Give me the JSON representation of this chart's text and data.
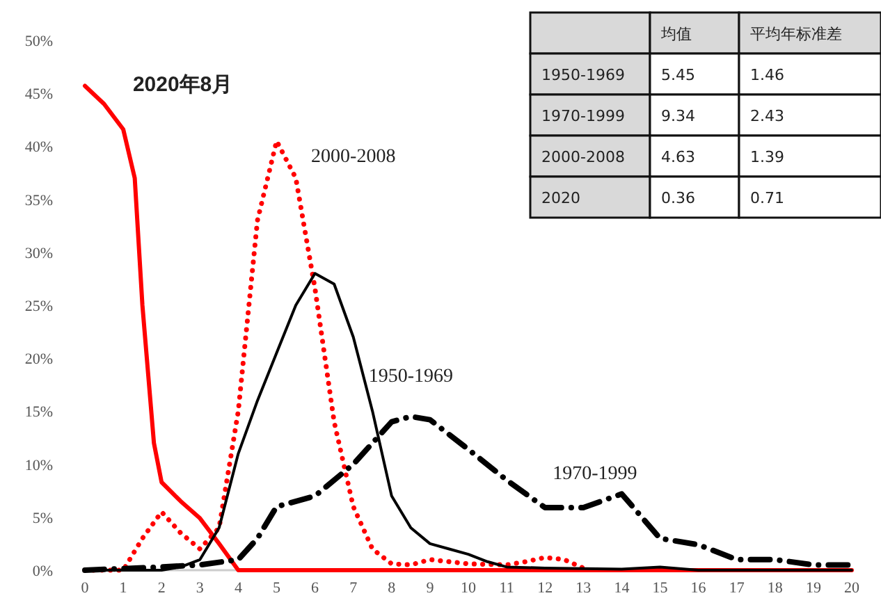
{
  "chart_data": {
    "type": "line",
    "annotations": [
      "均值",
      "平均年标准差",
      "1950-1969",
      "5.45",
      "1.46",
      "1970-1999",
      "9.34",
      "2.43",
      "2000-2008",
      "4.63",
      "1.39",
      "2020",
      "0.36",
      "0.71"
    ],
    "xlim": [
      0,
      20
    ],
    "xticks": [
      0,
      1,
      2,
      3,
      4,
      5,
      6,
      7,
      8,
      9,
      10,
      11,
      12,
      13,
      14,
      15,
      16,
      17,
      18,
      19,
      20
    ],
    "ylim": [
      0,
      50
    ],
    "yticks": [
      {
        "value": 0,
        "label": "0%"
      },
      {
        "value": 5,
        "label": "5%"
      },
      {
        "value": 10,
        "label": "10%"
      },
      {
        "value": 15,
        "label": "15%"
      },
      {
        "value": 20,
        "label": "20%"
      },
      {
        "value": 25,
        "label": "25%"
      },
      {
        "value": 30,
        "label": "30%"
      },
      {
        "value": 35,
        "label": "35%"
      },
      {
        "value": 40,
        "label": "40%"
      },
      {
        "value": 45,
        "label": "45%"
      },
      {
        "value": 50,
        "label": "50%"
      }
    ],
    "grid": false,
    "marker": "none",
    "series": [
      {
        "name": "2020年8月",
        "color": "#ff0000",
        "line_style": "solid",
        "x": [
          0,
          0.5,
          1,
          1.3,
          1.5,
          1.8,
          2,
          2.5,
          3,
          3.5,
          4,
          5,
          6,
          8,
          10,
          12,
          14,
          16,
          18,
          20
        ],
        "values": [
          45.7,
          44,
          41.6,
          37,
          25,
          12,
          8.3,
          6.5,
          4.9,
          2.5,
          0,
          0,
          0,
          0,
          0,
          0,
          0,
          0,
          0,
          0
        ]
      },
      {
        "name": "2000-2008",
        "color": "#ff0000",
        "line_style": "dotted",
        "x": [
          0,
          1,
          1.5,
          2,
          2.5,
          3,
          3.5,
          4,
          4.5,
          5,
          5.5,
          6,
          6.5,
          7,
          7.5,
          8,
          8.5,
          9,
          10,
          11,
          11.5,
          12,
          12.5,
          13
        ],
        "values": [
          0,
          0,
          3,
          5.5,
          3.5,
          2,
          4,
          15,
          33,
          40.5,
          37,
          26.6,
          14,
          6,
          2,
          0.6,
          0.5,
          1,
          0.6,
          0.5,
          0.8,
          1.2,
          1,
          0.2
        ]
      },
      {
        "name": "1950-1969",
        "color": "#000000",
        "line_style": "solid",
        "x": [
          0,
          1,
          2,
          2.5,
          3,
          3.5,
          4,
          4.5,
          5,
          5.5,
          6,
          6.5,
          7,
          7.5,
          8,
          8.5,
          9,
          9.5,
          10,
          10.5,
          11,
          12,
          14,
          15,
          16,
          20
        ],
        "values": [
          0,
          0,
          0,
          0.3,
          1,
          4,
          11,
          16,
          20.5,
          25,
          28,
          27,
          22,
          15,
          7,
          4,
          2.5,
          2,
          1.5,
          0.8,
          0.3,
          0.2,
          0.1,
          0.3,
          0,
          0
        ]
      },
      {
        "name": "1970-1999",
        "color": "#000000",
        "line_style": "dashed",
        "x": [
          0,
          2,
          3,
          4,
          4.5,
          5,
          6,
          7,
          8,
          8.5,
          9,
          10,
          11,
          12,
          13,
          14,
          15,
          16,
          17,
          18,
          19,
          20
        ],
        "values": [
          0,
          0.3,
          0.5,
          1,
          3,
          6,
          7,
          10,
          14,
          14.5,
          14.2,
          11.4,
          8.5,
          5.9,
          5.9,
          7.2,
          3,
          2.4,
          1,
          1,
          0.5,
          0.5
        ]
      }
    ]
  }
}
